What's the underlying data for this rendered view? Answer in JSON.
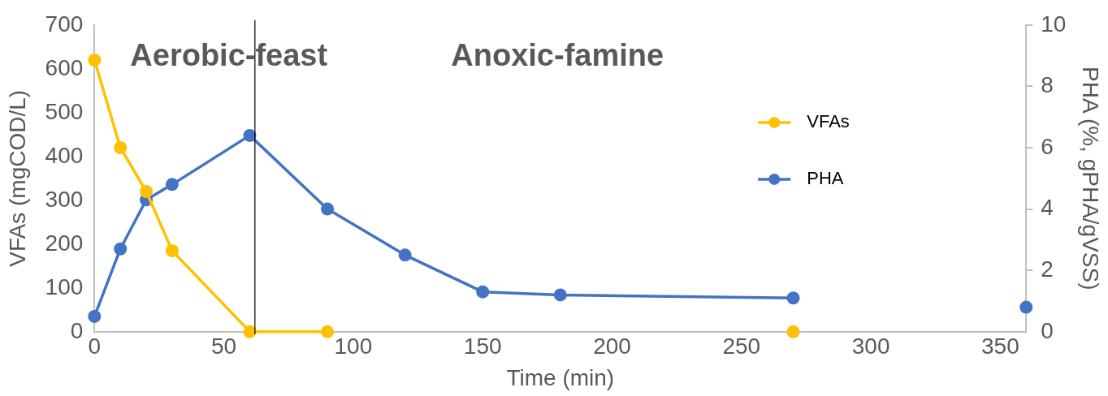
{
  "chart_data": {
    "type": "line",
    "xlabel": "Time (min)",
    "ylabel": "VFAs (mgCOD/L)",
    "y2label": "PHA (%, gPHA/gVSS)",
    "series": [
      {
        "name": "VFAs",
        "color": "#ffc000",
        "x": [
          0,
          10,
          20,
          30,
          60,
          90,
          120,
          270
        ],
        "values": [
          620,
          420,
          320,
          185,
          0,
          0,
          null,
          0
        ]
      },
      {
        "name": "PHA",
        "color": "#4472c4",
        "axis": "y2",
        "x": [
          0,
          10,
          20,
          30,
          60,
          90,
          120,
          150,
          180,
          270
        ],
        "values": [
          0.5,
          2.7,
          4.3,
          4.8,
          6.4,
          4.0,
          2.5,
          1.3,
          1.2,
          1.1
        ]
      },
      {
        "color": "#4472c4",
        "axis": "y2",
        "x": [
          360
        ],
        "values": [
          0.8
        ]
      }
    ],
    "xlim": [
      0,
      360
    ],
    "xticks": [
      0,
      50,
      100,
      150,
      200,
      250,
      300,
      350
    ],
    "ylim": [
      0,
      700
    ],
    "yticks": [
      0,
      100,
      200,
      300,
      400,
      500,
      600,
      700
    ],
    "y2lim": [
      0,
      10
    ],
    "y2ticks": [
      0,
      2,
      4,
      6,
      8,
      10
    ],
    "ref_lines": [
      {
        "axis": "x",
        "value": 62,
        "color": "#000000"
      }
    ],
    "annotations": [
      "Aerobic-feast",
      "Anoxic-famine"
    ],
    "marker": "circle",
    "line_style": "solid",
    "grid": false,
    "legend": "right"
  }
}
